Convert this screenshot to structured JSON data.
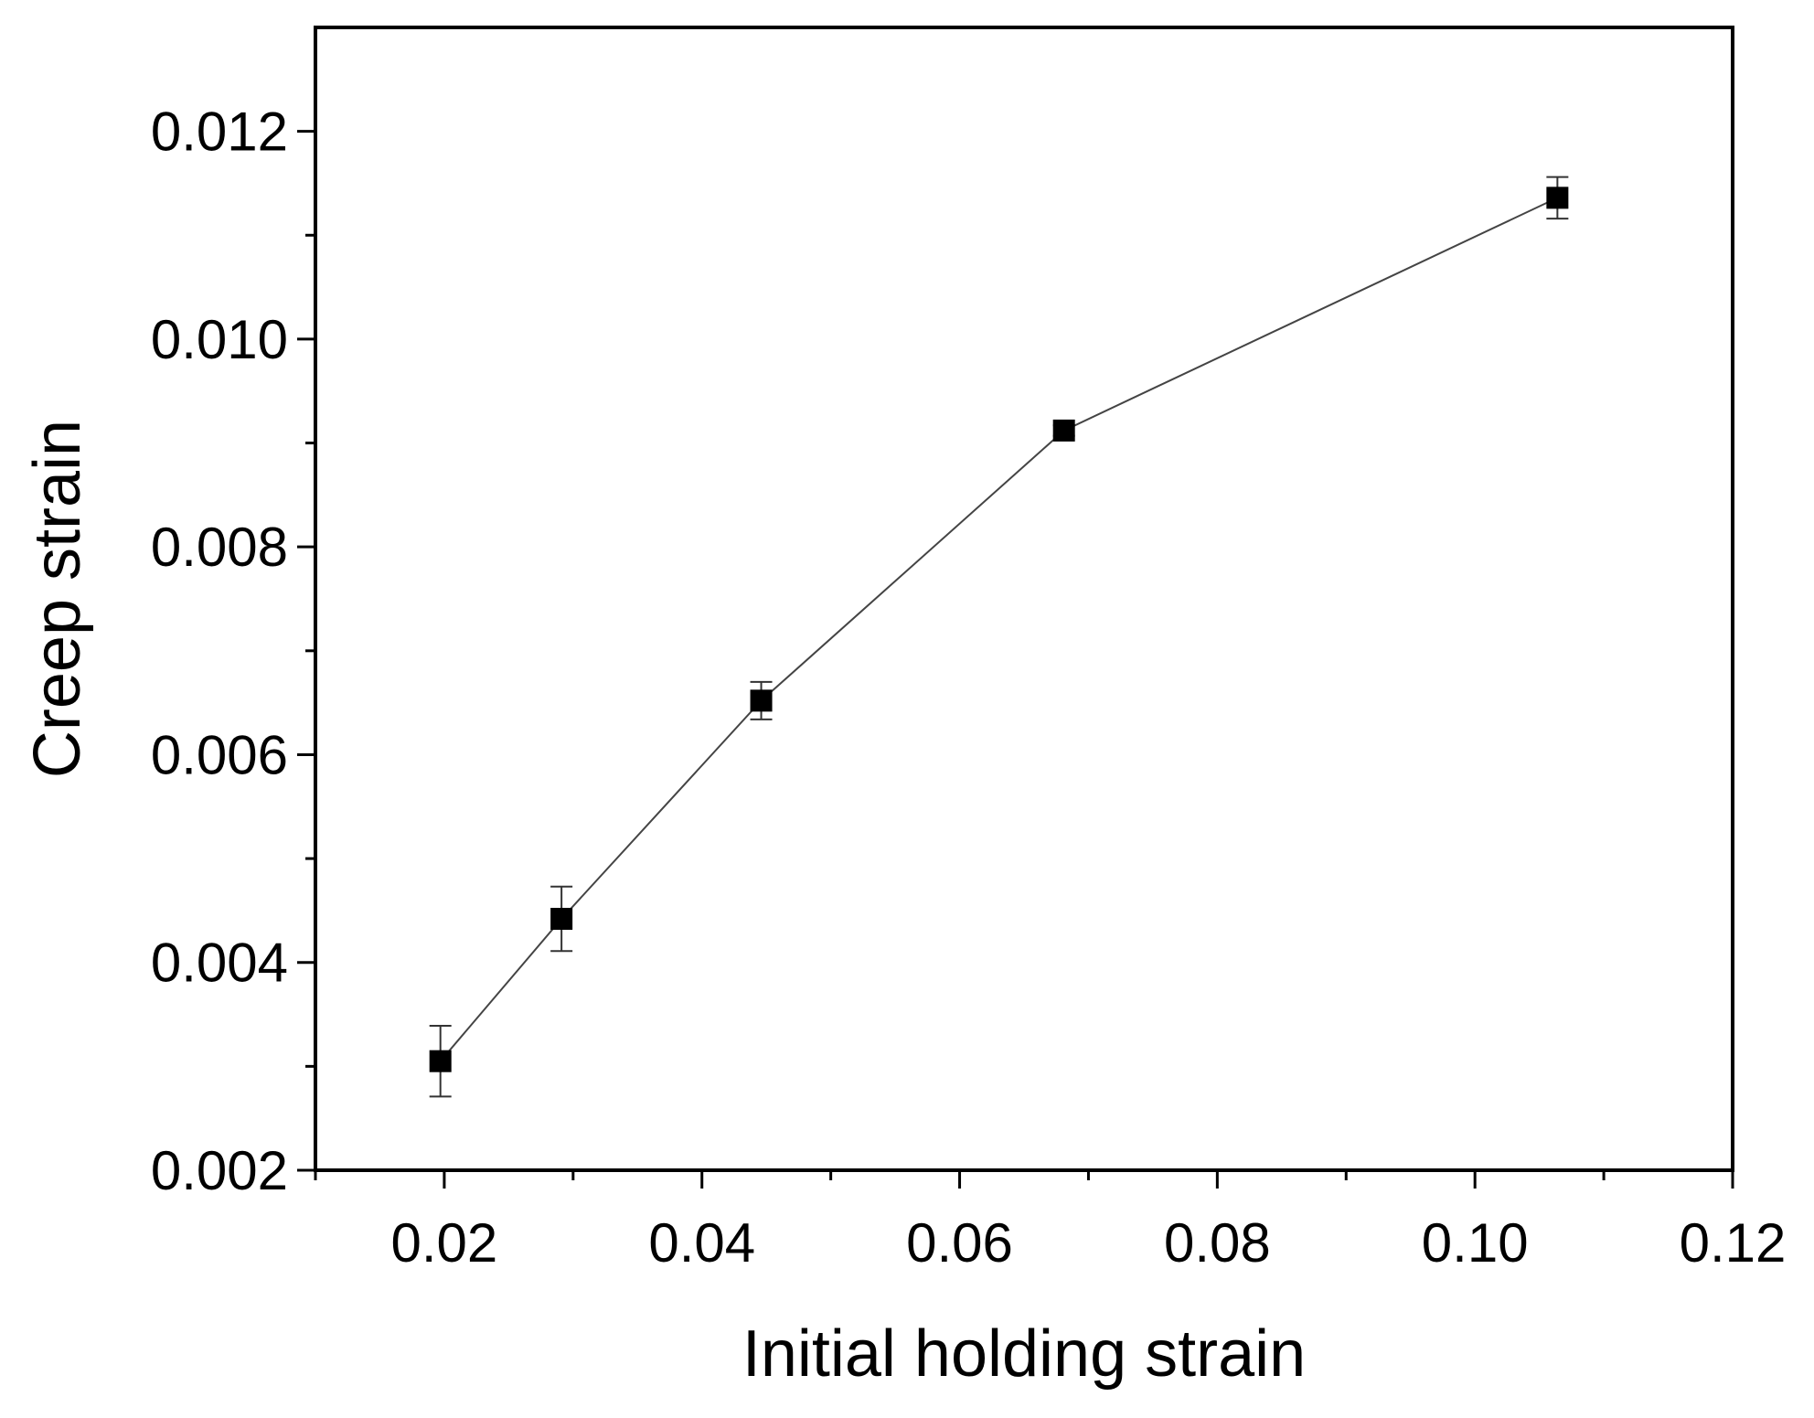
{
  "chart_data": {
    "type": "scatter",
    "title": "",
    "xlabel": "Initial holding strain",
    "ylabel": "Creep strain",
    "xlim": [
      0.01,
      0.12
    ],
    "ylim": [
      0.002,
      0.013
    ],
    "x_major_ticks": [
      0.02,
      0.04,
      0.06,
      0.08,
      0.1,
      0.12
    ],
    "x_tick_labels": [
      "0.02",
      "0.04",
      "0.06",
      "0.08",
      "0.10",
      "0.12"
    ],
    "x_minor_ticks": [
      0.01,
      0.03,
      0.05,
      0.07,
      0.09,
      0.11
    ],
    "y_major_ticks": [
      0.002,
      0.004,
      0.006,
      0.008,
      0.01,
      0.012
    ],
    "y_tick_labels": [
      "0.002",
      "0.004",
      "0.006",
      "0.008",
      "0.010",
      "0.012"
    ],
    "y_minor_ticks": [
      0.003,
      0.005,
      0.007,
      0.009,
      0.011
    ],
    "grid": false,
    "legend": false,
    "series": [
      {
        "marker": "square",
        "line": true,
        "color": "#000000",
        "points": [
          {
            "x": 0.0197,
            "y": 0.00305,
            "err": 0.00034
          },
          {
            "x": 0.0291,
            "y": 0.00442,
            "err": 0.00031
          },
          {
            "x": 0.0446,
            "y": 0.00652,
            "err": 0.00018
          },
          {
            "x": 0.0681,
            "y": 0.00912,
            "err": 5e-05
          },
          {
            "x": 0.1064,
            "y": 0.01136,
            "err": 0.0002
          }
        ]
      }
    ]
  }
}
